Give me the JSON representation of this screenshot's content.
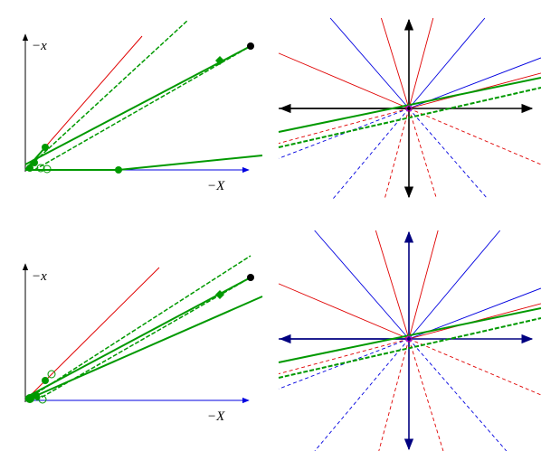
{
  "panels": [
    {
      "y_label": "−x",
      "x_label": "−X"
    },
    {
      "y_label": "−x",
      "x_label": "−X"
    }
  ]
}
